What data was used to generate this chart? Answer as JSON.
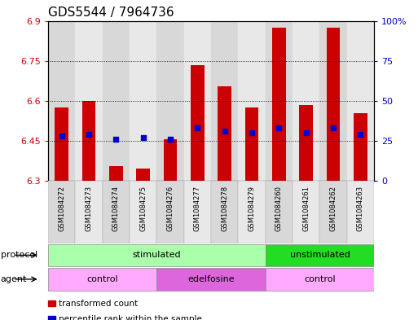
{
  "title": "GDS5544 / 7964736",
  "samples": [
    "GSM1084272",
    "GSM1084273",
    "GSM1084274",
    "GSM1084275",
    "GSM1084276",
    "GSM1084277",
    "GSM1084278",
    "GSM1084279",
    "GSM1084260",
    "GSM1084261",
    "GSM1084262",
    "GSM1084263"
  ],
  "transformed_count": [
    6.575,
    6.6,
    6.355,
    6.345,
    6.455,
    6.735,
    6.655,
    6.575,
    6.875,
    6.585,
    6.875,
    6.555
  ],
  "percentile_rank_pct": [
    28,
    29,
    26,
    27,
    26,
    33,
    31,
    30,
    33,
    30,
    33,
    29
  ],
  "y_min": 6.3,
  "y_max": 6.9,
  "y_ticks": [
    6.3,
    6.45,
    6.6,
    6.75,
    6.9
  ],
  "y_tick_labels": [
    "6.3",
    "6.45",
    "6.6",
    "6.75",
    "6.9"
  ],
  "right_y_ticks": [
    0,
    25,
    50,
    75,
    100
  ],
  "right_y_labels": [
    "0",
    "25",
    "50",
    "75",
    "100%"
  ],
  "bar_color": "#cc0000",
  "dot_color": "#0000cc",
  "bar_bottom": 6.3,
  "protocol_groups": [
    {
      "label": "stimulated",
      "start": 0,
      "end": 8,
      "color": "#aaffaa"
    },
    {
      "label": "unstimulated",
      "start": 8,
      "end": 12,
      "color": "#22dd22"
    }
  ],
  "agent_groups": [
    {
      "label": "control",
      "start": 0,
      "end": 4,
      "color": "#ffaaff"
    },
    {
      "label": "edelfosine",
      "start": 4,
      "end": 8,
      "color": "#dd66dd"
    },
    {
      "label": "control",
      "start": 8,
      "end": 12,
      "color": "#ffaaff"
    }
  ],
  "legend_red_label": "transformed count",
  "legend_blue_label": "percentile rank within the sample",
  "bg_color": "#ffffff",
  "tick_color_left": "#cc0000",
  "tick_color_right": "#0000cc",
  "title_fontsize": 11,
  "axis_fontsize": 8,
  "bar_width": 0.5
}
